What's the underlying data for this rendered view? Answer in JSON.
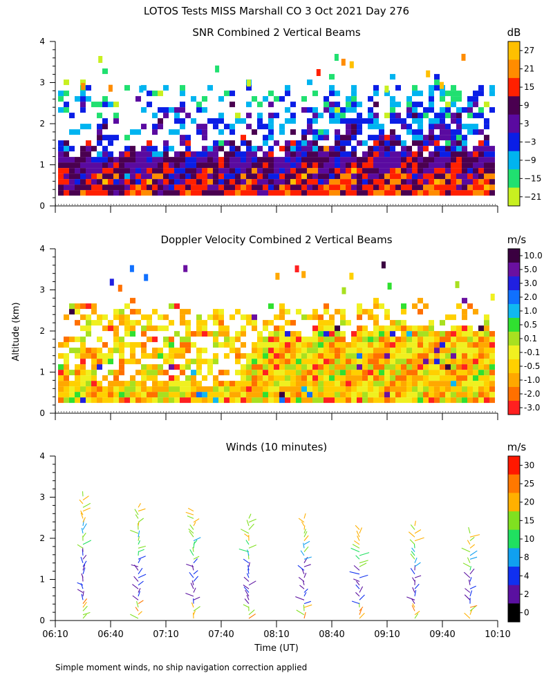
{
  "figure": {
    "title": "LOTOS Tests MISS Marshall CO   3 Oct 2021 Day 276",
    "ylabel": "Altitude (km)",
    "xlabel": "Time (UT)",
    "footnote": "Simple moment winds, no ship navigation correction applied"
  },
  "chart_data": [
    {
      "type": "heatmap",
      "title": "SNR Combined 2 Vertical Beams",
      "ylim": [
        0,
        4
      ],
      "yticks": [
        "0",
        "1",
        "2",
        "3",
        "4"
      ],
      "xlim_minutes": [
        370,
        610
      ],
      "colorbar": {
        "unit": "dB",
        "labels": [
          "27",
          "21",
          "15",
          "9",
          "3",
          "−3",
          "−9",
          "−15",
          "−21"
        ],
        "colors": [
          "#ffc000",
          "#ff8c00",
          "#ff2000",
          "#4a0050",
          "#5a0aa0",
          "#0a1ee6",
          "#00b4f0",
          "#20e070",
          "#c8f020"
        ]
      },
      "range_km": [
        0.25,
        2.9
      ],
      "field": "SNR (dB)"
    },
    {
      "type": "heatmap",
      "title": "Doppler Velocity Combined 2 Vertical Beams",
      "ylim": [
        0,
        4
      ],
      "yticks": [
        "0",
        "1",
        "2",
        "3",
        "4"
      ],
      "xlim_minutes": [
        370,
        610
      ],
      "colorbar": {
        "unit": "m/s",
        "labels": [
          "10.0",
          "5.0",
          "3.0",
          "2.0",
          "1.0",
          "0.5",
          "0.1",
          "-0.1",
          "-0.5",
          "-1.0",
          "-2.0",
          "-3.0"
        ],
        "colors": [
          "#3a0040",
          "#6a10a0",
          "#2020e0",
          "#1070ff",
          "#10b8f0",
          "#30e030",
          "#a8e020",
          "#f0f020",
          "#ffd000",
          "#ffa800",
          "#ff7000",
          "#ff2020"
        ]
      },
      "range_km": [
        0.25,
        2.6
      ],
      "field": "Doppler velocity (m/s)"
    },
    {
      "type": "scatter",
      "title": "Winds (10 minutes)",
      "ylim": [
        0,
        4
      ],
      "yticks": [
        "0",
        "1",
        "2",
        "3",
        "4"
      ],
      "xlim_minutes": [
        370,
        610
      ],
      "xticks": [
        "06:10",
        "06:40",
        "07:10",
        "07:40",
        "08:10",
        "08:40",
        "09:10",
        "09:40",
        "10:10"
      ],
      "colorbar": {
        "unit": "m/s",
        "labels": [
          "30",
          "25",
          "20",
          "15",
          "10",
          "8",
          "4",
          "2",
          "0"
        ],
        "colors": [
          "#ff1800",
          "#ff7800",
          "#ffb000",
          "#80e020",
          "#20e060",
          "#10a0f0",
          "#1030f0",
          "#5a10a0",
          "#000000"
        ]
      },
      "profile_times_min": [
        385,
        415,
        445,
        475,
        505,
        535,
        565,
        595
      ],
      "profile_tops_km": [
        3.1,
        2.8,
        2.7,
        2.55,
        2.55,
        2.3,
        2.35,
        2.15
      ],
      "field": "Horizontal wind barbs (speed m/s)"
    }
  ]
}
